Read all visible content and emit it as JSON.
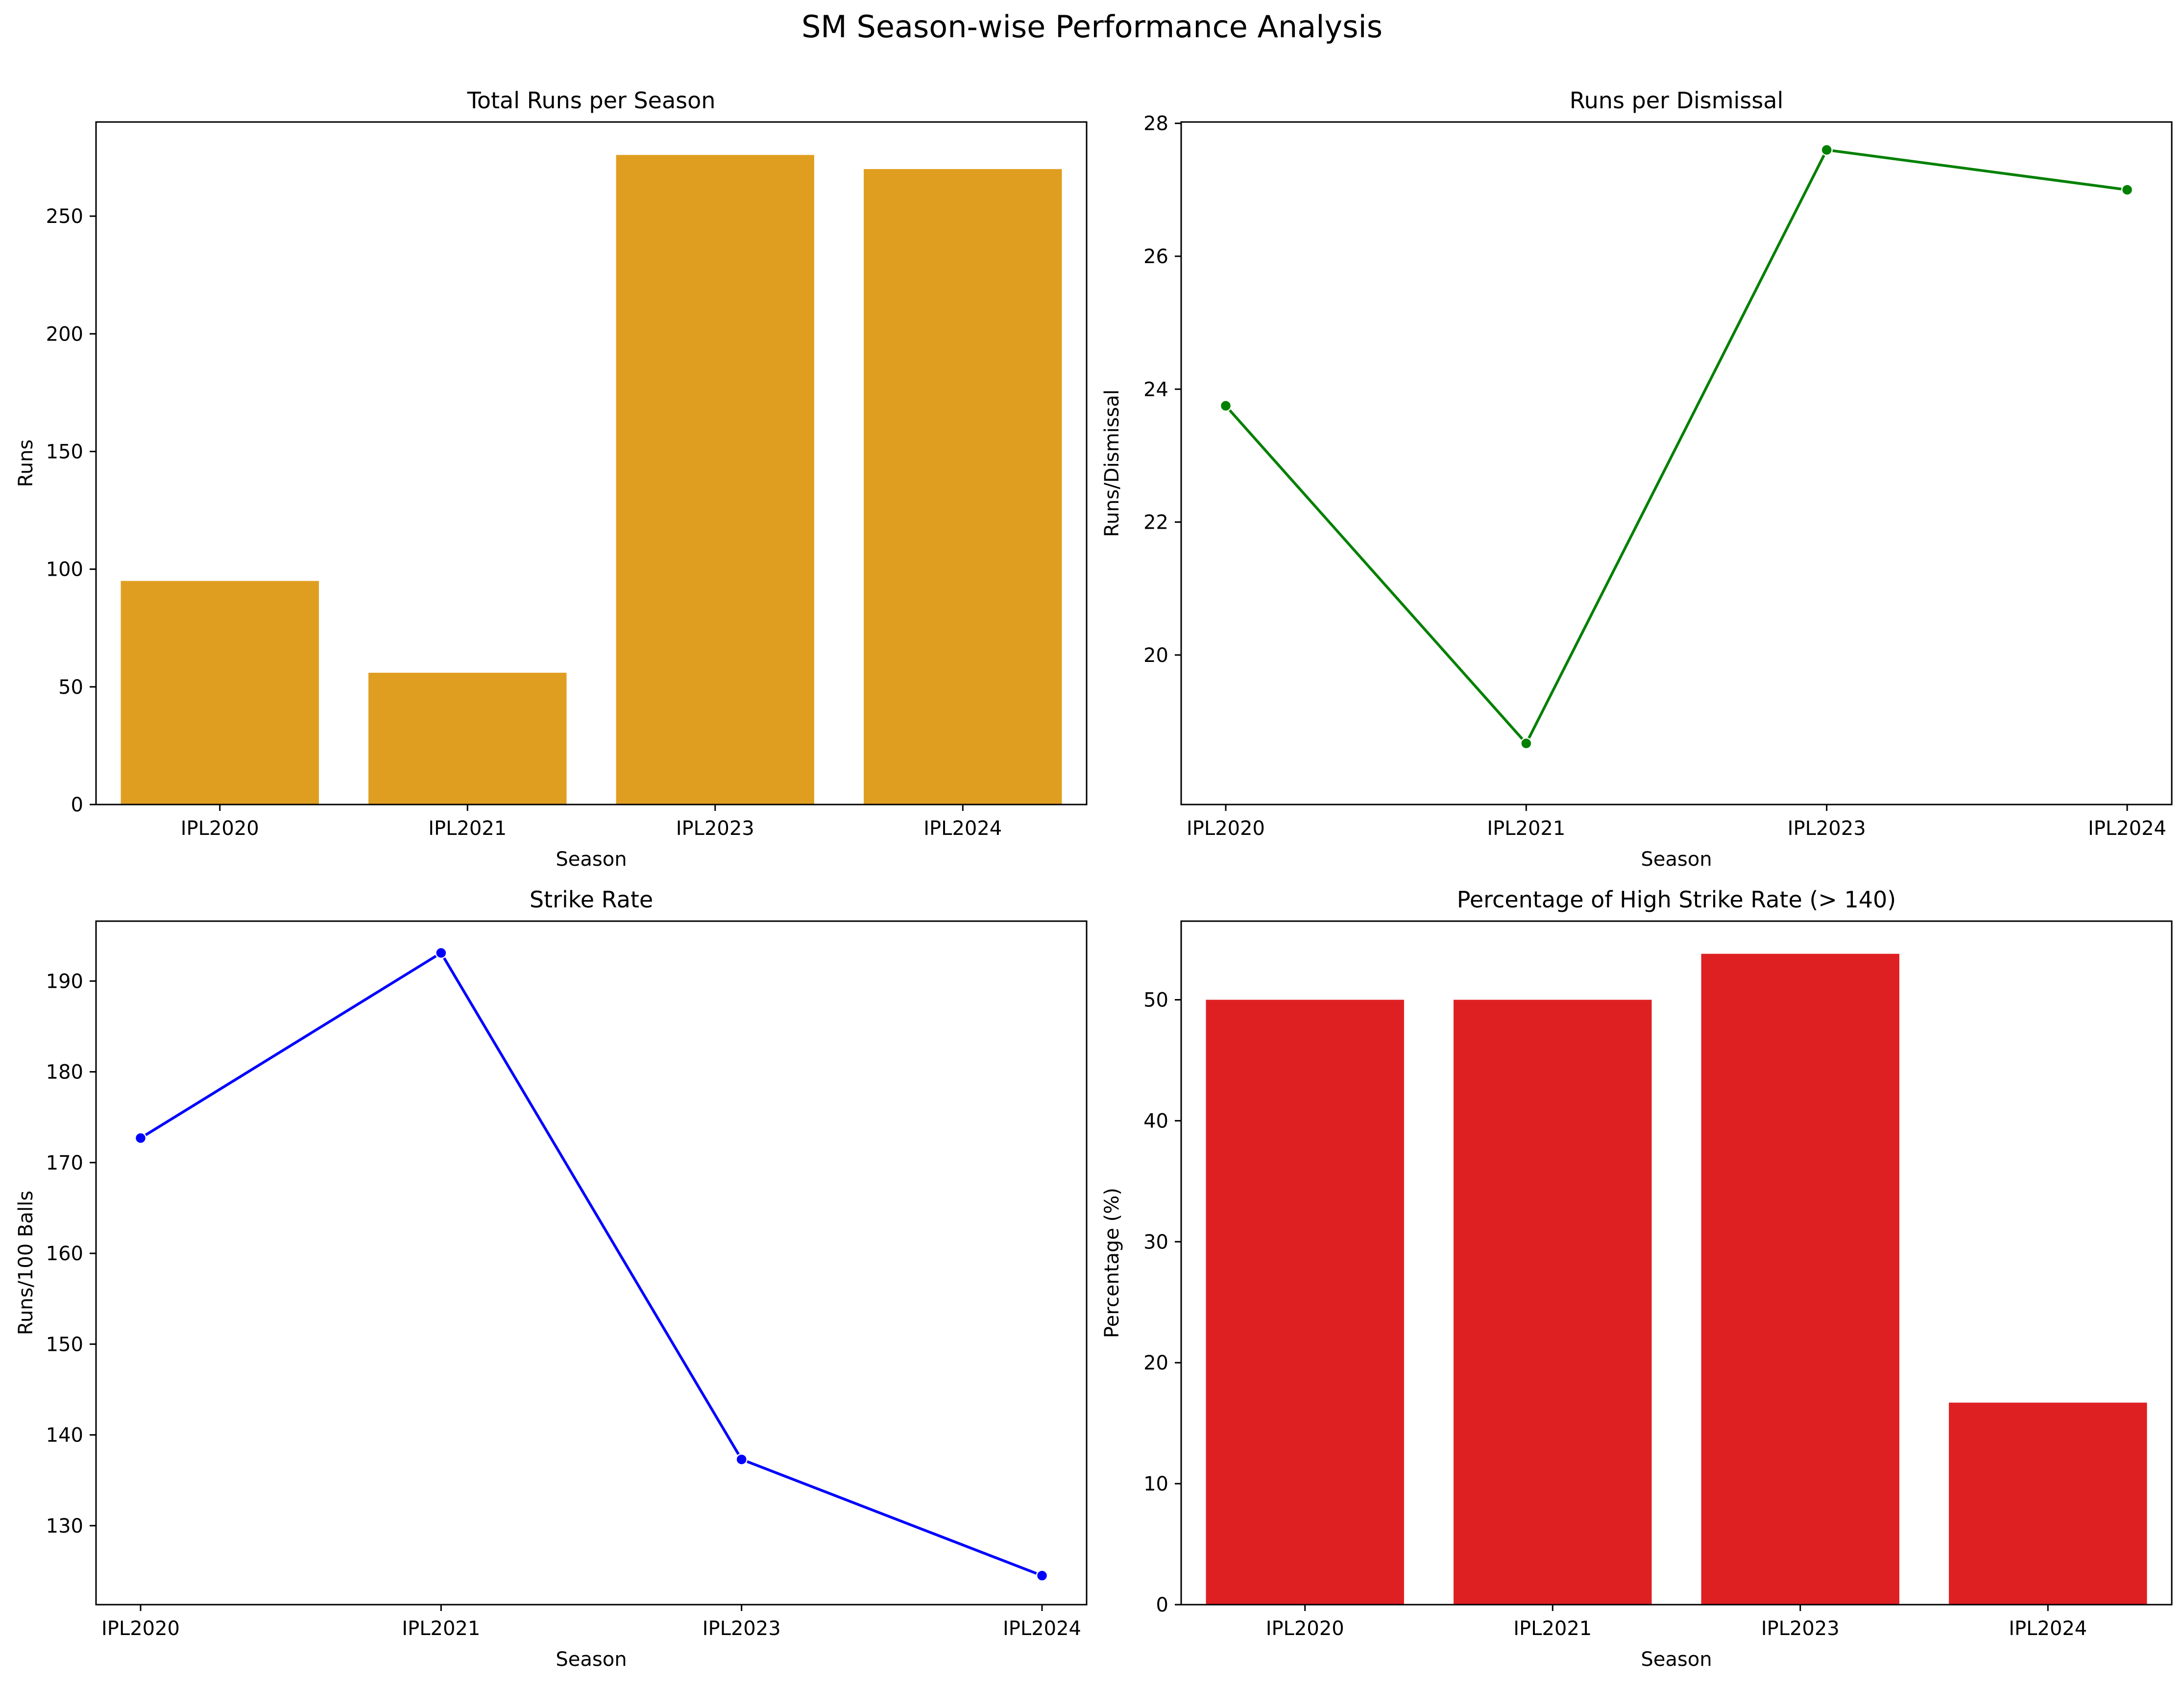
{
  "figure": {
    "title": "SM Season-wise Performance Analysis"
  },
  "chart_data": [
    {
      "type": "bar",
      "title": "Total Runs per Season",
      "xlabel": "Season",
      "ylabel": "Runs",
      "categories": [
        "IPL2020",
        "IPL2021",
        "IPL2023",
        "IPL2024"
      ],
      "values": [
        95,
        56,
        276,
        270
      ],
      "ylim": [
        0,
        290
      ],
      "yticks": [
        0,
        50,
        100,
        150,
        200,
        250
      ],
      "color": "#e09e20",
      "grid": false
    },
    {
      "type": "line",
      "title": "Runs per Dismissal",
      "xlabel": "Season",
      "ylabel": "Runs/Dismissal",
      "categories": [
        "IPL2020",
        "IPL2021",
        "IPL2023",
        "IPL2024"
      ],
      "values": [
        23.75,
        18.67,
        27.6,
        27.0
      ],
      "ylim": [
        17.75,
        28.02
      ],
      "yticks": [
        20,
        22,
        24,
        26,
        28
      ],
      "color": "#008000",
      "marker": "circle",
      "grid": false
    },
    {
      "type": "line",
      "title": "Strike Rate",
      "xlabel": "Season",
      "ylabel": "Runs/100 Balls",
      "categories": [
        "IPL2020",
        "IPL2021",
        "IPL2023",
        "IPL2024"
      ],
      "values": [
        172.7,
        193.1,
        137.3,
        124.5
      ],
      "ylim": [
        121.3,
        196.6
      ],
      "yticks": [
        130,
        140,
        150,
        160,
        170,
        180,
        190
      ],
      "color": "#0000ff",
      "marker": "circle",
      "grid": false
    },
    {
      "type": "bar",
      "title": "Percentage of High Strike Rate (> 140)",
      "xlabel": "Season",
      "ylabel": "Percentage (%)",
      "categories": [
        "IPL2020",
        "IPL2021",
        "IPL2023",
        "IPL2024"
      ],
      "values": [
        50.0,
        50.0,
        53.8,
        16.7
      ],
      "ylim": [
        0,
        56.5
      ],
      "yticks": [
        0,
        10,
        20,
        30,
        40,
        50
      ],
      "color": "#df2022",
      "grid": false
    }
  ]
}
